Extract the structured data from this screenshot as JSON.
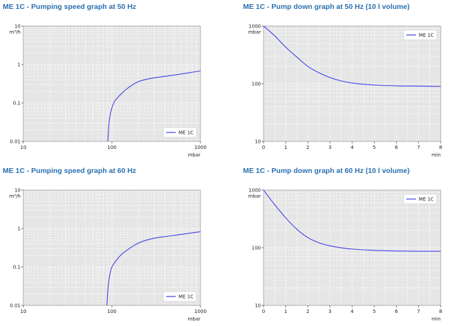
{
  "colors": {
    "series": "#3f3fe6",
    "plot_bg": "#e6e6e6",
    "grid": "#ffffff",
    "title": "#2a6fb0"
  },
  "chart_data": [
    {
      "type": "line",
      "title": "ME 1C - Pumping speed graph at 50 Hz",
      "x_unit_label": "mbar",
      "y_unit_label": "m³/h",
      "x_scale": "log",
      "y_scale": "log",
      "xlim": [
        10,
        1000
      ],
      "ylim": [
        0.01,
        10
      ],
      "x_ticks": [
        "10",
        "100",
        "1000"
      ],
      "y_ticks": [
        "0.01",
        "0.1",
        "1",
        "10"
      ],
      "grid": true,
      "legend_position": "bottom-right",
      "series": [
        {
          "name": "ME 1C",
          "x": [
            90,
            92,
            95,
            100,
            105,
            110,
            120,
            130,
            150,
            200,
            300,
            500,
            1000
          ],
          "y": [
            0.01,
            0.024,
            0.045,
            0.075,
            0.1,
            0.12,
            0.15,
            0.18,
            0.24,
            0.36,
            0.45,
            0.53,
            0.68
          ]
        }
      ]
    },
    {
      "type": "line",
      "title": "ME 1C - Pump down graph at 50 Hz (10 l volume)",
      "x_unit_label": "min",
      "y_unit_label": "mbar",
      "x_scale": "linear",
      "y_scale": "log",
      "xlim": [
        0,
        8
      ],
      "ylim": [
        10,
        1000
      ],
      "x_ticks": [
        "0",
        "1",
        "2",
        "3",
        "4",
        "5",
        "6",
        "7",
        "8"
      ],
      "y_ticks": [
        "10",
        "100",
        "1000"
      ],
      "grid": true,
      "legend_position": "top-right",
      "series": [
        {
          "name": "ME 1C",
          "x": [
            0,
            0.5,
            1,
            1.5,
            2,
            2.5,
            3,
            3.5,
            4,
            5,
            6,
            7,
            8
          ],
          "y": [
            1000,
            680,
            430,
            290,
            200,
            155,
            128,
            112,
            103,
            95,
            92,
            91,
            90
          ]
        }
      ]
    },
    {
      "type": "line",
      "title": "ME 1C - Pumping speed graph at 60 Hz",
      "x_unit_label": "mbar",
      "y_unit_label": "m³/h",
      "x_scale": "log",
      "y_scale": "log",
      "xlim": [
        10,
        1000
      ],
      "ylim": [
        0.01,
        10
      ],
      "x_ticks": [
        "10",
        "100",
        "1000"
      ],
      "y_ticks": [
        "0.01",
        "0.1",
        "1",
        "10"
      ],
      "grid": true,
      "legend_position": "bottom-right",
      "series": [
        {
          "name": "ME 1C",
          "x": [
            88,
            90,
            93,
            97,
            100,
            110,
            120,
            140,
            200,
            300,
            500,
            1000
          ],
          "y": [
            0.01,
            0.025,
            0.05,
            0.08,
            0.1,
            0.14,
            0.18,
            0.25,
            0.42,
            0.56,
            0.66,
            0.83
          ]
        }
      ]
    },
    {
      "type": "line",
      "title": "ME 1C - Pump down graph at 60 Hz (10 l volume)",
      "x_unit_label": "min",
      "y_unit_label": "mbar",
      "x_scale": "linear",
      "y_scale": "log",
      "xlim": [
        0,
        8
      ],
      "ylim": [
        10,
        1000
      ],
      "x_ticks": [
        "0",
        "1",
        "2",
        "3",
        "4",
        "5",
        "6",
        "7",
        "8"
      ],
      "y_ticks": [
        "10",
        "100",
        "1000"
      ],
      "grid": true,
      "legend_position": "top-right",
      "series": [
        {
          "name": "ME 1C",
          "x": [
            0,
            0.5,
            1,
            1.5,
            2,
            2.5,
            3,
            3.5,
            4,
            5,
            6,
            7,
            8
          ],
          "y": [
            1000,
            560,
            330,
            210,
            150,
            122,
            108,
            100,
            95,
            90,
            88,
            87,
            87
          ]
        }
      ]
    }
  ]
}
